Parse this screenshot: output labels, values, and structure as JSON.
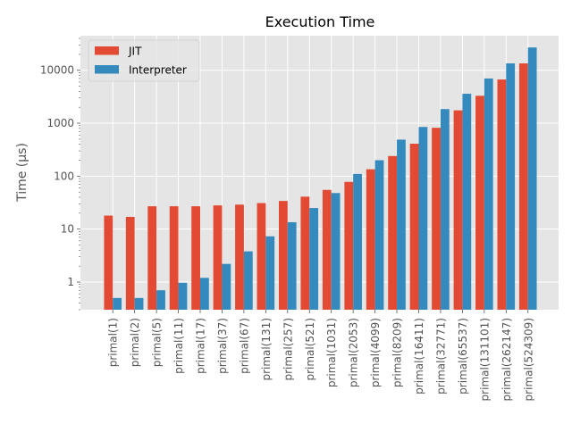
{
  "chart_data": {
    "type": "bar",
    "title": "Execution Time",
    "xlabel": "",
    "ylabel": "Time (μs)",
    "yscale": "log",
    "ylim": [
      0.3,
      45000
    ],
    "yticks": [
      1,
      10,
      100,
      1000,
      10000
    ],
    "ytick_labels": [
      "1",
      "10",
      "100",
      "1000",
      "10000"
    ],
    "grid": true,
    "legend_position": "top-left",
    "categories": [
      "primal(1)",
      "primal(2)",
      "primal(5)",
      "primal(11)",
      "primal(17)",
      "primal(37)",
      "primal(67)",
      "primal(131)",
      "primal(257)",
      "primal(521)",
      "primal(1031)",
      "primal(2053)",
      "primal(4099)",
      "primal(8209)",
      "primal(16411)",
      "primal(32771)",
      "primal(65537)",
      "primal(131101)",
      "primal(262147)",
      "primal(524309)"
    ],
    "series": [
      {
        "name": "JIT",
        "color": "#E24A33",
        "values": [
          18,
          17,
          27,
          27,
          27,
          28,
          29,
          31,
          34,
          41,
          55,
          78,
          135,
          240,
          410,
          820,
          1750,
          3300,
          6700,
          13500
        ]
      },
      {
        "name": "Interpreter",
        "color": "#348ABD",
        "values": [
          0.5,
          0.5,
          0.7,
          0.97,
          1.2,
          2.2,
          3.8,
          7.3,
          13.5,
          25,
          48,
          110,
          200,
          490,
          850,
          1850,
          3600,
          7000,
          13500,
          27000
        ]
      }
    ]
  }
}
